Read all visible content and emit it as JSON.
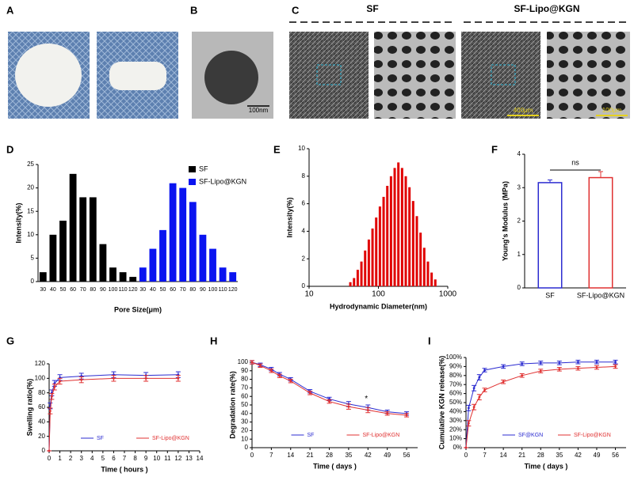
{
  "images": [
    {
      "panel": "A"
    },
    {
      "panel": "B",
      "scale_bar": "100nm"
    },
    {
      "panel": "C",
      "groups": [
        "SF",
        "SF-Lipo@KGN"
      ],
      "scale_bars": [
        "400μm",
        "100μm"
      ]
    }
  ],
  "chart_data": [
    {
      "panel": "D",
      "type": "bar",
      "xlabel": "Pore Size(μm)",
      "ylabel": "Intensity(%)",
      "legend": "upper right",
      "categories": [
        "30",
        "40",
        "50",
        "60",
        "70",
        "80",
        "90",
        "100",
        "110",
        "120",
        "30",
        "40",
        "50",
        "60",
        "70",
        "80",
        "90",
        "100",
        "110",
        "120"
      ],
      "series": [
        {
          "name": "SF",
          "color": "#000000",
          "values": [
            2,
            10,
            13,
            23,
            18,
            18,
            8,
            3,
            2,
            1,
            null,
            null,
            null,
            null,
            null,
            null,
            null,
            null,
            null,
            null
          ]
        },
        {
          "name": "SF-Lipo@KGN",
          "color": "#0a14f0",
          "values": [
            null,
            null,
            null,
            null,
            null,
            null,
            null,
            null,
            null,
            null,
            3,
            7,
            11,
            21,
            20,
            17,
            10,
            7,
            3,
            2
          ]
        }
      ],
      "ylim": [
        0,
        25
      ],
      "yticks": [
        0,
        5,
        10,
        15,
        20,
        25
      ]
    },
    {
      "panel": "E",
      "type": "histogram",
      "xlabel": "Hydrodynamic Diameter(nm)",
      "ylabel": "Intensity(%)",
      "color": "#e00000",
      "xscale": "log",
      "bins": [
        37,
        41.9,
        47.3,
        53.5,
        60.5,
        68.4,
        77.3,
        87.4,
        98.8,
        111.7,
        126.3,
        142.8,
        161.4,
        182.5,
        206.3,
        233.2,
        263.6,
        298,
        336.9,
        380.9,
        430.6,
        486.7,
        550.2,
        622,
        703
      ],
      "values": [
        0.3,
        0.6,
        1.2,
        1.8,
        2.6,
        3.4,
        4.2,
        5.0,
        5.8,
        6.5,
        7.3,
        8.0,
        8.6,
        9.0,
        8.6,
        8.0,
        7.2,
        6.2,
        5.1,
        3.9,
        2.8,
        1.8,
        1.0,
        0.5
      ],
      "xlim": [
        10,
        1000
      ],
      "xticks": [
        10,
        100,
        1000
      ],
      "ylim": [
        0,
        10
      ],
      "yticks": [
        0,
        2,
        4,
        6,
        8,
        10
      ]
    },
    {
      "panel": "F",
      "type": "bar",
      "ylabel": "Young's Modulus (MPa)",
      "filled": false,
      "annotation": "ns",
      "categories": [
        "SF",
        "SF-Lipo@KGN"
      ],
      "values": [
        3.15,
        3.3
      ],
      "errors": [
        0.08,
        0.18
      ],
      "colors": [
        "#2b2bd0",
        "#e03030"
      ],
      "ylim": [
        0,
        4
      ],
      "yticks": [
        0,
        1,
        2,
        3,
        4
      ]
    },
    {
      "panel": "G",
      "type": "line",
      "xlabel": "Time ( hours )",
      "ylabel": "Swelling ratio(%)",
      "legend": "lower center",
      "x": [
        0,
        0.1,
        0.25,
        0.5,
        1,
        3,
        6,
        9,
        12
      ],
      "series": [
        {
          "name": "SF",
          "color": "#2b2bd0",
          "values": [
            0,
            62,
            80,
            93,
            101,
            103,
            105,
            104,
            105
          ],
          "errors": [
            0,
            4,
            4,
            4,
            4,
            4,
            4,
            4,
            4
          ]
        },
        {
          "name": "SF-Lipo@KGN",
          "color": "#e03030",
          "values": [
            0,
            55,
            75,
            88,
            96,
            98,
            100,
            100,
            100
          ],
          "errors": [
            0,
            4,
            4,
            4,
            4,
            4,
            4,
            4,
            4
          ]
        }
      ],
      "xlim": [
        0,
        14
      ],
      "xticks": [
        0,
        1,
        2,
        3,
        4,
        5,
        6,
        7,
        8,
        9,
        10,
        11,
        12,
        13,
        14
      ],
      "ylim": [
        0,
        120
      ],
      "yticks": [
        0,
        20,
        40,
        60,
        80,
        100,
        120
      ]
    },
    {
      "panel": "H",
      "type": "line",
      "xlabel": "Time ( days )",
      "ylabel": "Degradation rate(%)",
      "legend": "lower center",
      "annotation": "*",
      "x": [
        0,
        3,
        7,
        10,
        14,
        21,
        28,
        35,
        42,
        49,
        56
      ],
      "series": [
        {
          "name": "SF",
          "color": "#2b2bd0",
          "values": [
            100,
            97,
            92,
            86,
            80,
            66,
            57,
            51,
            47,
            42,
            40
          ],
          "errors": [
            2,
            2,
            2,
            2,
            2,
            2,
            2,
            3,
            3,
            2,
            2
          ]
        },
        {
          "name": "SF-Lipo@KGN",
          "color": "#e03030",
          "values": [
            100,
            96,
            90,
            84,
            78,
            64,
            54,
            48,
            44,
            40,
            38
          ],
          "errors": [
            2,
            2,
            2,
            2,
            2,
            2,
            2,
            3,
            3,
            2,
            2
          ]
        }
      ],
      "xlim": [
        0,
        60
      ],
      "xticks": [
        0,
        7,
        14,
        21,
        28,
        35,
        42,
        49,
        56
      ],
      "ylim": [
        0,
        100
      ],
      "yticks": [
        0,
        10,
        20,
        30,
        40,
        50,
        60,
        70,
        80,
        90,
        100
      ]
    },
    {
      "panel": "I",
      "type": "line",
      "xlabel": "Time ( days )",
      "ylabel": "Cumulative KGN release(%)",
      "legend": "lower center",
      "x": [
        0,
        1,
        3,
        5,
        7,
        14,
        21,
        28,
        35,
        42,
        49,
        56
      ],
      "series": [
        {
          "name": "SF@KGN",
          "color": "#2b2bd0",
          "values": [
            0,
            44,
            66,
            78,
            86,
            90,
            93,
            94,
            94,
            95,
            95,
            95
          ],
          "errors": [
            0,
            3,
            3,
            3,
            2,
            2,
            2,
            2,
            2,
            2,
            2,
            2
          ]
        },
        {
          "name": "SF-Lipo@KGN",
          "color": "#e03030",
          "values": [
            0,
            27,
            45,
            56,
            64,
            73,
            80,
            85,
            87,
            88,
            89,
            90
          ],
          "errors": [
            0,
            3,
            3,
            3,
            2,
            2,
            2,
            2,
            2,
            2,
            2,
            2
          ]
        }
      ],
      "xlim": [
        0,
        60
      ],
      "xticks": [
        0,
        7,
        14,
        21,
        28,
        35,
        42,
        49,
        56
      ],
      "ylim": [
        0,
        100
      ],
      "yticks": [
        {
          "value": 0,
          "label": "0%"
        },
        {
          "value": 10,
          "label": "10%"
        },
        {
          "value": 20,
          "label": "20%"
        },
        {
          "value": 30,
          "label": "30%"
        },
        {
          "value": 40,
          "label": "40%"
        },
        {
          "value": 50,
          "label": "50%"
        },
        {
          "value": 60,
          "label": "60%"
        },
        {
          "value": 70,
          "label": "70%"
        },
        {
          "value": 80,
          "label": "80%"
        },
        {
          "value": 90,
          "label": "90%"
        },
        {
          "value": 100,
          "label": "100%"
        }
      ]
    }
  ]
}
